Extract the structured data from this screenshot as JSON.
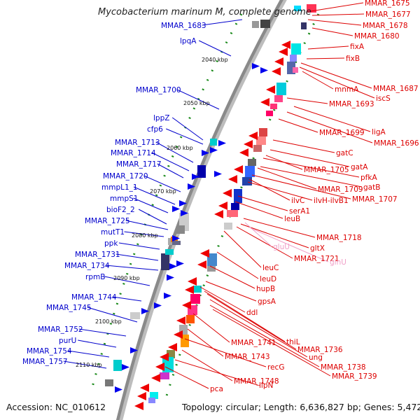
{
  "title": "Mycobacterium marinum M, complete genome",
  "footer": {
    "accession": "Accession: NC_010612",
    "summary": "Topology: circular; Length: 6,636,827 bp; Genes: 5,472"
  },
  "colors": {
    "forward_label": "#dd0000",
    "reverse_label": "#0000cc",
    "rna_label": "#f0a0c8",
    "backbone": "#8a8a8a",
    "dot_track": "#1a8a1a"
  },
  "kbp_ticks": [
    "2040 kbp",
    "2050 kbp",
    "2060 kbp",
    "2070 kbp",
    "2080 kbp",
    "2090 kbp",
    "2100 kbp",
    "2110 kbp"
  ],
  "left_labels": [
    "MMAR_1683",
    "lpqA",
    "MMAR_1700",
    "lppZ",
    "cfp6",
    "MMAR_1713",
    "MMAR_1714",
    "MMAR_1717",
    "MMAR_1720",
    "mmpL1_1",
    "mmpS1",
    "bioF2_2",
    "MMAR_1725",
    "mutT1",
    "ppk",
    "MMAR_1731",
    "MMAR_1734",
    "rpmB",
    "MMAR_1744",
    "MMAR_1745",
    "MMAR_1752",
    "purU",
    "MMAR_1754",
    "MMAR_1757"
  ],
  "right_labels": [
    "MMAR_1675",
    "MMAR_1677",
    "MMAR_1678",
    "MMAR_1680",
    "fixA",
    "fixB",
    "mnmA",
    "MMAR_1687",
    "iscS",
    "MMAR_1693",
    "MMAR_1699",
    "ligA",
    "MMAR_1696",
    "gatC",
    "gatA",
    "MMAR_1705",
    "pfkA",
    "gatB",
    "MMAR_1709",
    "ilvC",
    "ilvH-ilvB1",
    "MMAR_1707",
    "serA1",
    "leuB",
    "MMAR_1718",
    "gltX",
    "MMAR_1721",
    "leuC",
    "leuD",
    "hupB",
    "gpsA",
    "ddl",
    "thiL",
    "MMAR_1741",
    "MMAR_1736",
    "MMAR_1743",
    "ung",
    "recG",
    "MMAR_1738",
    "MMAR_1739",
    "MMAR_1748",
    "lipN",
    "pca"
  ],
  "rna_labels": [
    "gluU",
    "glnU"
  ]
}
